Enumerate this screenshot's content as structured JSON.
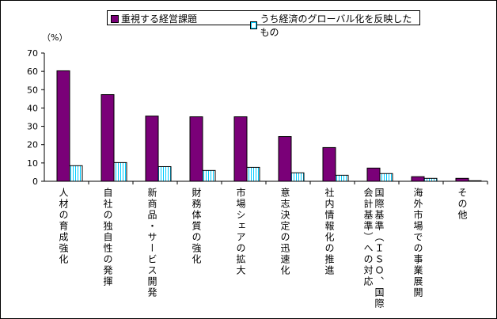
{
  "chart_data": {
    "type": "bar",
    "unit_label": "（%）",
    "ylim": [
      0,
      70
    ],
    "yticks": [
      "0",
      "10",
      "20",
      "30",
      "40",
      "50",
      "60",
      "70"
    ],
    "grid": false,
    "legend_position": "top",
    "categories": [
      [
        "人材の育成強化"
      ],
      [
        "自社の独自性の発揮"
      ],
      [
        "新商品・サービス開発"
      ],
      [
        "財務体質の強化"
      ],
      [
        "市場シェアの拡大"
      ],
      [
        "意志決定の迅速化"
      ],
      [
        "社内情報化の推進"
      ],
      [
        "国際基準（ＩＳＯ、国際",
        "会計基準）への対応"
      ],
      [
        "海外市場での事業展開"
      ],
      [
        "その他"
      ]
    ],
    "series": [
      {
        "name": "重視する経営課題",
        "color": "#7a0078",
        "values": [
          60.3,
          47.3,
          35.6,
          35.2,
          35.2,
          24.4,
          18.4,
          7.2,
          2.5,
          1.6
        ]
      },
      {
        "name": "うち経済のグローバル化を反映したもの",
        "color": "#00ccff",
        "values": [
          8.5,
          10.2,
          8.0,
          5.9,
          7.6,
          4.6,
          3.3,
          4.2,
          1.6,
          0.3
        ]
      }
    ]
  }
}
